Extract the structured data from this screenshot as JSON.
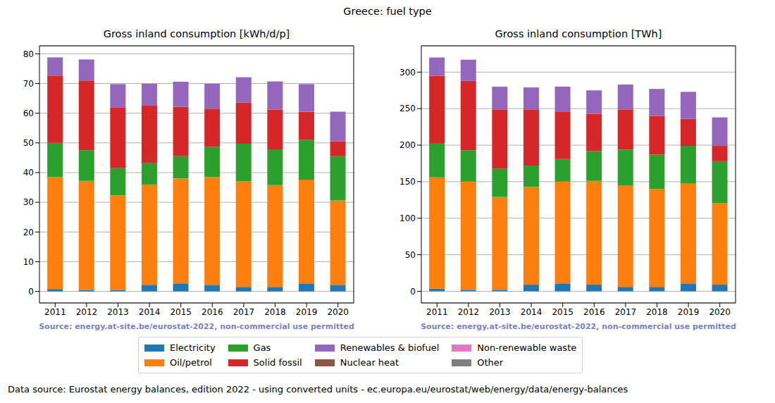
{
  "title": "Greece: fuel type",
  "footer": "Data source: Eurostat energy balances, edition 2022 - using converted units - ec.europa.eu/eurostat/web/energy/data/energy-balances",
  "chart_data": [
    {
      "type": "bar",
      "title": "Gross inland consumption [kWh/d/p]",
      "annotation": "Source: energy.at-site.be/eurostat-2022, non-commercial use permitted",
      "stacked": true,
      "grid": true,
      "categories": [
        "2011",
        "2012",
        "2013",
        "2014",
        "2015",
        "2016",
        "2017",
        "2018",
        "2019",
        "2020"
      ],
      "ylim": [
        -3.9,
        82.7
      ],
      "yticks": [
        0,
        10,
        20,
        30,
        40,
        50,
        60,
        70,
        80
      ],
      "series": [
        {
          "name": "Electricity",
          "color": "#1f77b4",
          "values": [
            0.8,
            0.5,
            0.5,
            2.2,
            2.5,
            2.2,
            1.5,
            1.5,
            2.5,
            2.2
          ]
        },
        {
          "name": "Oil/petrol",
          "color": "#ff7f0e",
          "values": [
            37.7,
            36.7,
            31.8,
            33.8,
            35.5,
            36.3,
            35.5,
            34.3,
            35.1,
            28.4
          ]
        },
        {
          "name": "Gas",
          "color": "#2ca02c",
          "values": [
            11.5,
            10.3,
            9.2,
            7.3,
            7.5,
            10.2,
            12.7,
            12,
            13.4,
            14.9
          ]
        },
        {
          "name": "Solid fossil",
          "color": "#d62728",
          "values": [
            22.7,
            23.5,
            20.5,
            19.4,
            16.7,
            12.8,
            13.9,
            13.4,
            9.5,
            5
          ]
        },
        {
          "name": "Renewables & biofuel",
          "color": "#9467bd",
          "values": [
            6.1,
            7.1,
            7.8,
            7.2,
            8.4,
            8.4,
            8.5,
            9.5,
            9.3,
            10
          ]
        },
        {
          "name": "Nuclear heat",
          "color": "#8c564b",
          "values": [
            0,
            0,
            0,
            0,
            0,
            0,
            0,
            0,
            0,
            0
          ]
        },
        {
          "name": "Non-renewable waste",
          "color": "#e377c2",
          "values": [
            0,
            0,
            0,
            0,
            0,
            0,
            0,
            0,
            0,
            0
          ]
        },
        {
          "name": "Other",
          "color": "#7f7f7f",
          "values": [
            0,
            0,
            0,
            0,
            0,
            0,
            0,
            0,
            0,
            0
          ]
        }
      ]
    },
    {
      "type": "bar",
      "title": "Gross inland consumption [TWh]",
      "annotation": "Source: energy.at-site.be/eurostat-2022, non-commercial use permitted",
      "stacked": true,
      "grid": true,
      "categories": [
        "2011",
        "2012",
        "2013",
        "2014",
        "2015",
        "2016",
        "2017",
        "2018",
        "2019",
        "2020"
      ],
      "ylim": [
        -16,
        336
      ],
      "yticks": [
        0,
        50,
        100,
        150,
        200,
        250,
        300
      ],
      "series": [
        {
          "name": "Electricity",
          "color": "#1f77b4",
          "values": [
            3.5,
            2,
            2,
            9,
            10,
            9,
            6,
            6,
            10,
            9
          ]
        },
        {
          "name": "Oil/petrol",
          "color": "#ff7f0e",
          "values": [
            152.5,
            148,
            127,
            134,
            140,
            142,
            139,
            134,
            138,
            112
          ]
        },
        {
          "name": "Gas",
          "color": "#2ca02c",
          "values": [
            47,
            43,
            39,
            29,
            31,
            41,
            49,
            47,
            51,
            57
          ]
        },
        {
          "name": "Solid fossil",
          "color": "#d62728",
          "values": [
            92,
            95,
            81,
            77,
            65,
            51,
            55,
            53,
            37,
            21
          ]
        },
        {
          "name": "Renewables & biofuel",
          "color": "#9467bd",
          "values": [
            25,
            29,
            31,
            30,
            34,
            32,
            34,
            37,
            37,
            39
          ]
        },
        {
          "name": "Nuclear heat",
          "color": "#8c564b",
          "values": [
            0,
            0,
            0,
            0,
            0,
            0,
            0,
            0,
            0,
            0
          ]
        },
        {
          "name": "Non-renewable waste",
          "color": "#e377c2",
          "values": [
            0,
            0,
            0,
            0,
            0,
            0,
            0,
            0,
            0,
            0
          ]
        },
        {
          "name": "Other",
          "color": "#7f7f7f",
          "values": [
            0,
            0,
            0,
            0,
            0,
            0,
            0,
            0,
            0,
            0
          ]
        }
      ]
    }
  ]
}
